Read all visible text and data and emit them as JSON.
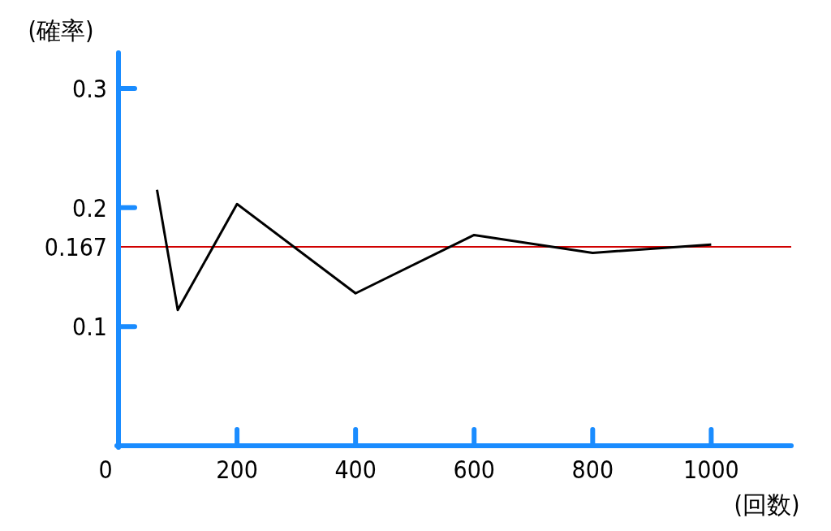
{
  "chart_data": {
    "type": "line",
    "xlabel": "(回数)",
    "ylabel": "(確率)",
    "x": [
      65,
      100,
      200,
      400,
      600,
      800,
      1000
    ],
    "series": [
      {
        "color": "#000000",
        "values": [
          0.215,
          0.114,
          0.203,
          0.128,
          0.177,
          0.162,
          0.169
        ]
      }
    ],
    "xlim": [
      0,
      1135
    ],
    "ylim": [
      0,
      0.33
    ],
    "xticks": [
      {
        "value": 0,
        "label": "0"
      },
      200,
      400,
      600,
      800,
      1000
    ],
    "yticks": [
      0.1,
      0.2,
      0.3
    ],
    "ref_lines": [
      {
        "axis": "y",
        "value": 0.167,
        "label": "0.167",
        "color": "#d00000"
      }
    ],
    "marker": "none",
    "line_style": "solid"
  }
}
